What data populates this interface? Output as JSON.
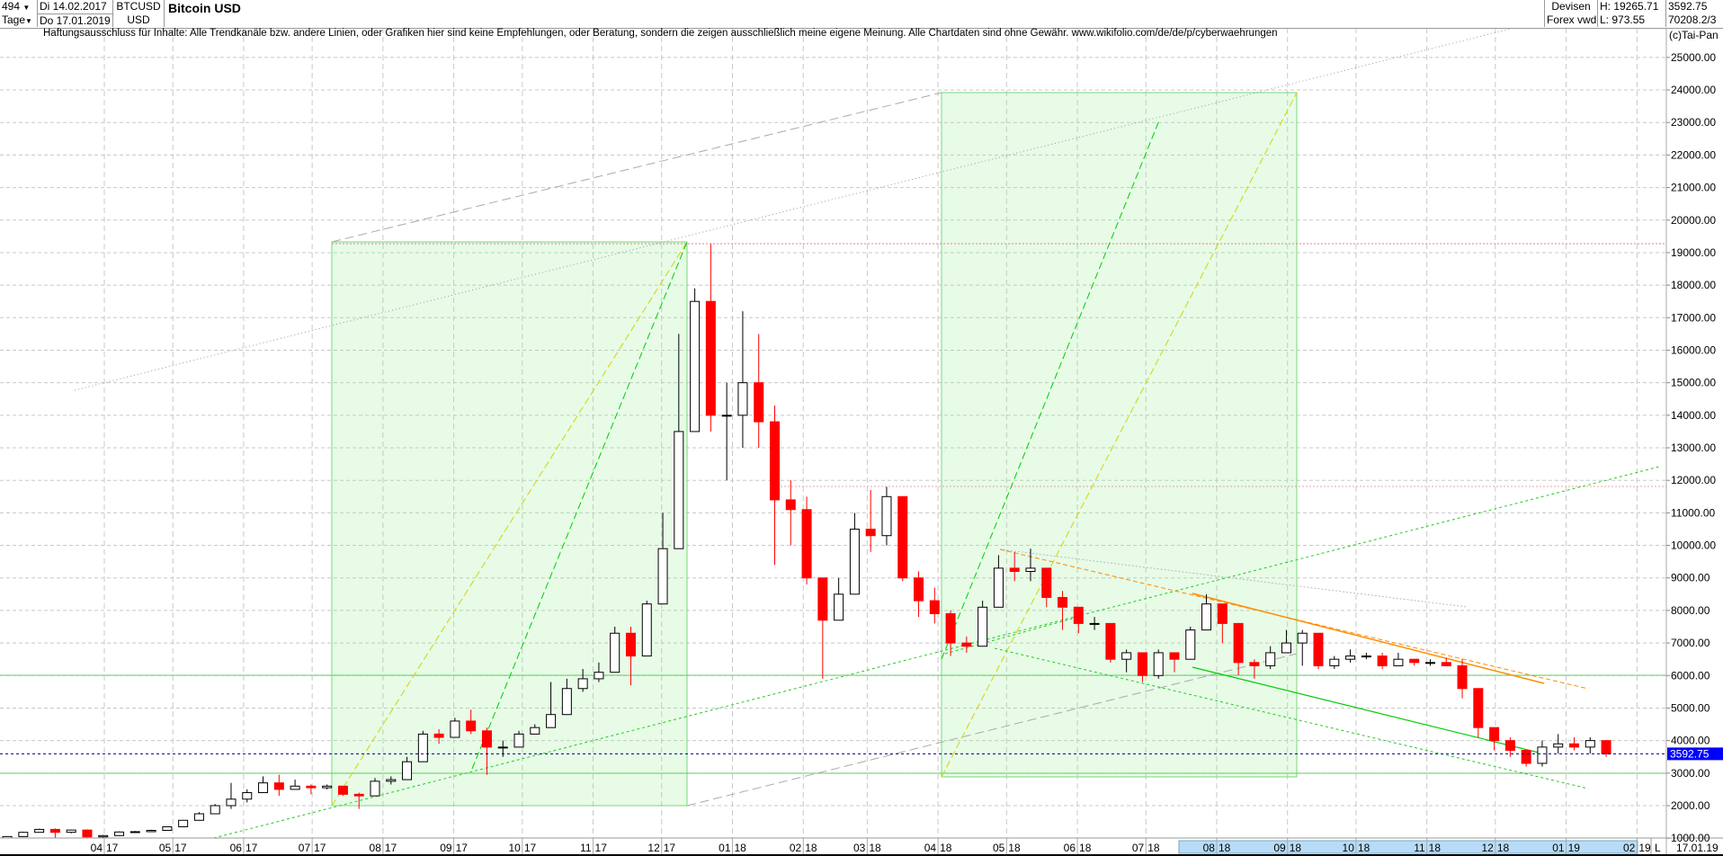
{
  "header": {
    "period_count": "494",
    "period_unit": "Tage",
    "start_date": "Di 14.02.2017",
    "end_date": "Do 17.01.2019",
    "symbol": "BTCUSD",
    "currency": "USD",
    "title": "Bitcoin USD",
    "exchange": "Devisen",
    "source": "Forex vwd",
    "high": "H: 19265.71",
    "low": "L: 973.55",
    "last": "3592.75",
    "volume": "70208.2/3",
    "copyright": "(c)Tai-Pan",
    "dropdown_icon": "triangle-down"
  },
  "disclaimer": "Haftungsausschluss für Inhalte: Alle Trendkanäle bzw. andere Linien, oder Grafiken hier sind keine Empfehlungen, oder Beratung, sondern die zeigen ausschließlich meine eigene Meinung. Alle Chartdaten sind ohne Gewähr.  www.wikifolio.com/de/de/p/cyberwaehrungen",
  "axis_footer": {
    "mode": "L",
    "date": "17.01.19"
  },
  "chart_data": {
    "type": "candlestick",
    "title": "Bitcoin USD",
    "ylim": [
      1000,
      25000
    ],
    "yticks": [
      1000,
      2000,
      3000,
      4000,
      5000,
      6000,
      7000,
      8000,
      9000,
      10000,
      11000,
      12000,
      13000,
      14000,
      15000,
      16000,
      17000,
      18000,
      19000,
      20000,
      21000,
      22000,
      23000,
      24000,
      25000
    ],
    "xticks": [
      [
        "04",
        "17"
      ],
      [
        "05",
        "17"
      ],
      [
        "06",
        "17"
      ],
      [
        "07",
        "17"
      ],
      [
        "08",
        "17"
      ],
      [
        "09",
        "17"
      ],
      [
        "10",
        "17"
      ],
      [
        "11",
        "17"
      ],
      [
        "12",
        "17"
      ],
      [
        "01",
        "18"
      ],
      [
        "02",
        "18"
      ],
      [
        "03",
        "18"
      ],
      [
        "04",
        "18"
      ],
      [
        "05",
        "18"
      ],
      [
        "06",
        "18"
      ],
      [
        "07",
        "18"
      ],
      [
        "08",
        "18"
      ],
      [
        "09",
        "18"
      ],
      [
        "10",
        "18"
      ],
      [
        "11",
        "18"
      ],
      [
        "12",
        "18"
      ],
      [
        "01",
        "19"
      ],
      [
        "02",
        "19"
      ]
    ],
    "xlim": [
      "2017-02-14",
      "2019-02-28"
    ],
    "grid": true,
    "last_price": 3592.75,
    "reference_levels": [
      19265.71,
      11800,
      6000,
      3000
    ],
    "colors": {
      "up": "#000000",
      "down": "#ff0000",
      "last_label_bg": "#0000ff",
      "box": "#90ee90",
      "trend_green": "#00cc00",
      "trend_orange": "#ff8c00",
      "trend_yellow": "#d4d400",
      "ref_red": "#e08080"
    },
    "candles_columns": [
      "week_start",
      "open",
      "high",
      "low",
      "close"
    ],
    "candles": [
      [
        "2017-02-14",
        990,
        1060,
        980,
        1050
      ],
      [
        "2017-02-21",
        1050,
        1200,
        1040,
        1180
      ],
      [
        "2017-02-28",
        1180,
        1290,
        1170,
        1270
      ],
      [
        "2017-03-07",
        1270,
        1300,
        1000,
        1180
      ],
      [
        "2017-03-14",
        1180,
        1260,
        1150,
        1250
      ],
      [
        "2017-03-21",
        1250,
        1270,
        940,
        1040
      ],
      [
        "2017-03-28",
        1040,
        1100,
        1000,
        1080
      ],
      [
        "2017-04-04",
        1080,
        1210,
        1070,
        1190
      ],
      [
        "2017-04-11",
        1190,
        1220,
        1160,
        1200
      ],
      [
        "2017-04-18",
        1200,
        1260,
        1190,
        1240
      ],
      [
        "2017-04-25",
        1240,
        1360,
        1240,
        1350
      ],
      [
        "2017-05-02",
        1350,
        1560,
        1340,
        1550
      ],
      [
        "2017-05-09",
        1550,
        1800,
        1540,
        1750
      ],
      [
        "2017-05-16",
        1750,
        2050,
        1740,
        2000
      ],
      [
        "2017-05-23",
        2000,
        2700,
        1900,
        2200
      ],
      [
        "2017-05-30",
        2200,
        2500,
        2100,
        2400
      ],
      [
        "2017-06-06",
        2400,
        2900,
        2400,
        2700
      ],
      [
        "2017-06-13",
        2700,
        2950,
        2300,
        2500
      ],
      [
        "2017-06-20",
        2500,
        2800,
        2500,
        2600
      ],
      [
        "2017-06-27",
        2600,
        2650,
        2350,
        2550
      ],
      [
        "2017-07-04",
        2550,
        2650,
        2500,
        2600
      ],
      [
        "2017-07-11",
        2600,
        2600,
        2300,
        2350
      ],
      [
        "2017-07-18",
        2350,
        2400,
        1900,
        2300
      ],
      [
        "2017-07-25",
        2300,
        2850,
        2300,
        2750
      ],
      [
        "2017-08-01",
        2750,
        2900,
        2650,
        2800
      ],
      [
        "2017-08-08",
        2800,
        3500,
        2800,
        3350
      ],
      [
        "2017-08-15",
        3350,
        4300,
        3350,
        4200
      ],
      [
        "2017-08-22",
        4200,
        4350,
        3900,
        4100
      ],
      [
        "2017-08-29",
        4100,
        4700,
        4100,
        4600
      ],
      [
        "2017-09-05",
        4600,
        4950,
        4200,
        4300
      ],
      [
        "2017-09-12",
        4300,
        4400,
        2950,
        3800
      ],
      [
        "2017-09-19",
        3800,
        4000,
        3500,
        3800
      ],
      [
        "2017-09-26",
        3800,
        4300,
        3800,
        4200
      ],
      [
        "2017-10-03",
        4200,
        4500,
        4200,
        4400
      ],
      [
        "2017-10-10",
        4400,
        5800,
        4400,
        4800
      ],
      [
        "2017-10-17",
        4800,
        5900,
        4800,
        5600
      ],
      [
        "2017-10-24",
        5600,
        6200,
        5500,
        5900
      ],
      [
        "2017-10-31",
        5900,
        6400,
        5800,
        6100
      ],
      [
        "2017-11-07",
        6100,
        7500,
        6100,
        7300
      ],
      [
        "2017-11-14",
        7300,
        7500,
        5700,
        6600
      ],
      [
        "2017-11-21",
        6600,
        8300,
        6600,
        8200
      ],
      [
        "2017-11-28",
        8200,
        11000,
        8200,
        9900
      ],
      [
        "2017-12-05",
        9900,
        16500,
        9900,
        13500
      ],
      [
        "2017-12-12",
        13500,
        17900,
        13500,
        17500
      ],
      [
        "2017-12-19",
        17500,
        19266,
        13500,
        14000
      ],
      [
        "2017-12-26",
        14000,
        15000,
        12000,
        14000
      ],
      [
        "2018-01-02",
        14000,
        17200,
        13000,
        15000
      ],
      [
        "2018-01-09",
        15000,
        16500,
        13000,
        13800
      ],
      [
        "2018-01-16",
        13800,
        14300,
        9400,
        11400
      ],
      [
        "2018-01-23",
        11400,
        12000,
        10000,
        11100
      ],
      [
        "2018-01-30",
        11100,
        11500,
        8800,
        9000
      ],
      [
        "2018-02-06",
        9000,
        9000,
        5900,
        7700
      ],
      [
        "2018-02-13",
        7700,
        9000,
        7700,
        8500
      ],
      [
        "2018-02-20",
        8500,
        11000,
        8500,
        10500
      ],
      [
        "2018-02-27",
        10500,
        11700,
        9800,
        10300
      ],
      [
        "2018-03-06",
        10300,
        11800,
        10000,
        11500
      ],
      [
        "2018-03-13",
        11500,
        11500,
        8900,
        9000
      ],
      [
        "2018-03-20",
        9000,
        9200,
        7800,
        8300
      ],
      [
        "2018-03-27",
        8300,
        8700,
        7600,
        7900
      ],
      [
        "2018-04-03",
        7900,
        8000,
        6600,
        7000
      ],
      [
        "2018-04-10",
        7000,
        7200,
        6700,
        6900
      ],
      [
        "2018-04-17",
        6900,
        8300,
        6900,
        8100
      ],
      [
        "2018-04-24",
        8100,
        9700,
        8100,
        9300
      ],
      [
        "2018-05-01",
        9300,
        9800,
        8900,
        9200
      ],
      [
        "2018-05-08",
        9200,
        9900,
        8900,
        9300
      ],
      [
        "2018-05-15",
        9300,
        9300,
        8100,
        8400
      ],
      [
        "2018-05-22",
        8400,
        8600,
        7400,
        8100
      ],
      [
        "2018-05-29",
        8100,
        8100,
        7300,
        7600
      ],
      [
        "2018-06-05",
        7600,
        7800,
        7400,
        7600
      ],
      [
        "2018-06-12",
        7600,
        7600,
        6400,
        6500
      ],
      [
        "2018-06-19",
        6500,
        6800,
        6100,
        6700
      ],
      [
        "2018-06-26",
        6700,
        6700,
        5800,
        6000
      ],
      [
        "2018-07-03",
        6000,
        6800,
        5900,
        6700
      ],
      [
        "2018-07-10",
        6700,
        6700,
        6100,
        6500
      ],
      [
        "2018-07-17",
        6500,
        7500,
        6500,
        7400
      ],
      [
        "2018-07-24",
        7400,
        8500,
        7400,
        8200
      ],
      [
        "2018-07-31",
        8200,
        8200,
        7000,
        7600
      ],
      [
        "2018-08-07",
        7600,
        7600,
        6000,
        6400
      ],
      [
        "2018-08-14",
        6400,
        6500,
        5900,
        6300
      ],
      [
        "2018-08-21",
        6300,
        6900,
        6200,
        6700
      ],
      [
        "2018-08-28",
        6700,
        7400,
        6700,
        7000
      ],
      [
        "2018-09-04",
        7000,
        7400,
        6300,
        7300
      ],
      [
        "2018-09-11",
        7300,
        7300,
        6200,
        6300
      ],
      [
        "2018-09-18",
        6300,
        6600,
        6200,
        6500
      ],
      [
        "2018-09-25",
        6500,
        6800,
        6400,
        6600
      ],
      [
        "2018-10-02",
        6600,
        6700,
        6500,
        6600
      ],
      [
        "2018-10-09",
        6600,
        6700,
        6200,
        6300
      ],
      [
        "2018-10-16",
        6300,
        6700,
        6300,
        6500
      ],
      [
        "2018-10-23",
        6500,
        6500,
        6300,
        6400
      ],
      [
        "2018-10-30",
        6400,
        6500,
        6300,
        6400
      ],
      [
        "2018-11-06",
        6400,
        6550,
        6300,
        6300
      ],
      [
        "2018-11-13",
        6300,
        6500,
        5300,
        5600
      ],
      [
        "2018-11-20",
        5600,
        5600,
        4100,
        4400
      ],
      [
        "2018-11-27",
        4400,
        4400,
        3700,
        4000
      ],
      [
        "2018-12-04",
        4000,
        4100,
        3500,
        3700
      ],
      [
        "2018-12-11",
        3700,
        3700,
        3200,
        3300
      ],
      [
        "2018-12-18",
        3300,
        4000,
        3200,
        3800
      ],
      [
        "2018-12-25",
        3800,
        4200,
        3600,
        3900
      ],
      [
        "2019-01-01",
        3900,
        4100,
        3700,
        3800
      ],
      [
        "2019-01-08",
        3800,
        4100,
        3600,
        4000
      ],
      [
        "2019-01-15",
        4000,
        4000,
        3500,
        3592.75
      ]
    ]
  }
}
